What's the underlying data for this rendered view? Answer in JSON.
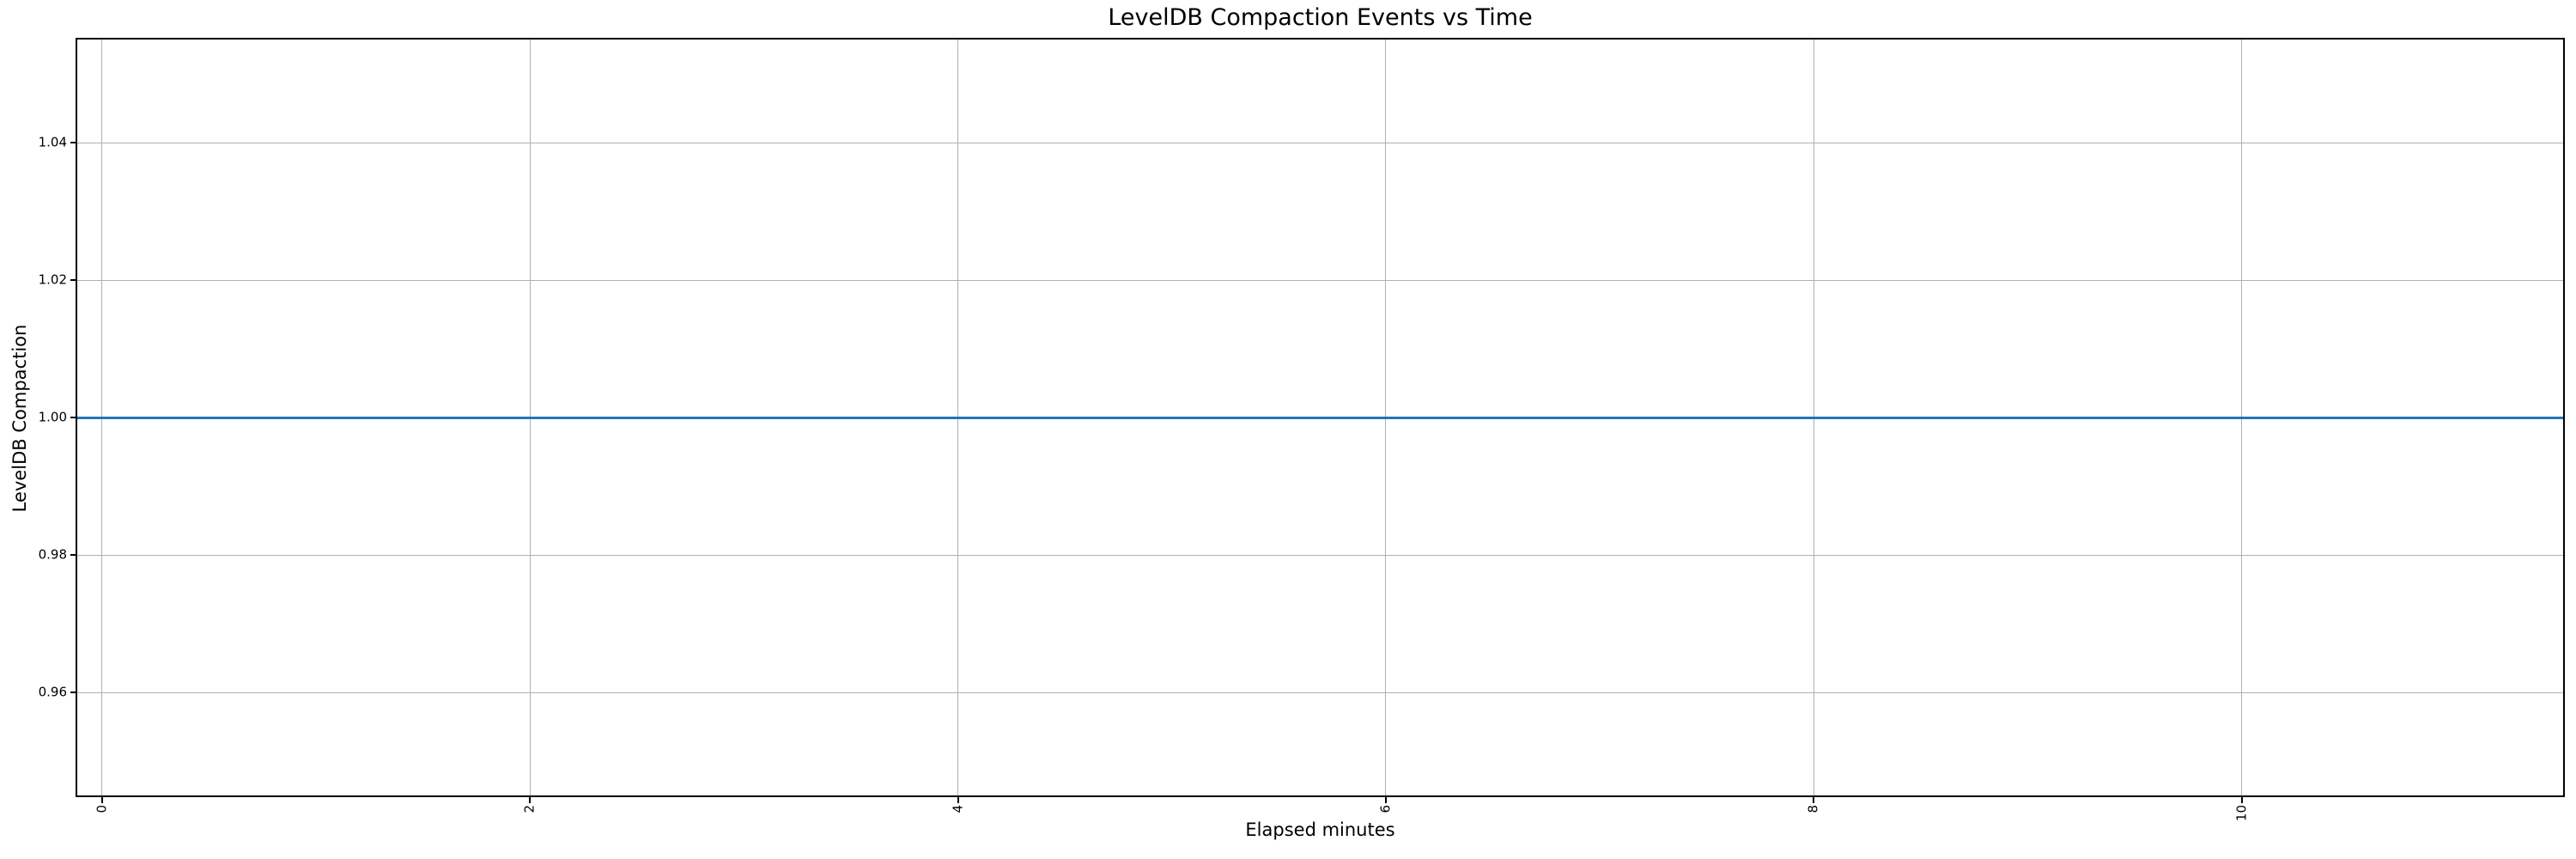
{
  "chart_data": {
    "type": "line",
    "title": "LevelDB Compaction Events vs Time",
    "xlabel": "Elapsed minutes",
    "ylabel": "LevelDB Compaction",
    "grid": true,
    "grid_color": "#b0b0b0",
    "background_color": "#ffffff",
    "spine_color": "#000000",
    "xlim": [
      -0.116,
      11.503
    ],
    "ylim": [
      0.945,
      1.055
    ],
    "x_ticks": [
      {
        "value": 0,
        "label": "0"
      },
      {
        "value": 2,
        "label": "2"
      },
      {
        "value": 4,
        "label": "4"
      },
      {
        "value": 6,
        "label": "6"
      },
      {
        "value": 8,
        "label": "8"
      },
      {
        "value": 10,
        "label": "10"
      }
    ],
    "x_tick_rotation": 90,
    "y_ticks": [
      {
        "value": 1.04,
        "label": "1.04"
      },
      {
        "value": 1.02,
        "label": "1.02"
      },
      {
        "value": 1.0,
        "label": "1.00"
      },
      {
        "value": 0.98,
        "label": "0.98"
      },
      {
        "value": 0.96,
        "label": "0.96"
      }
    ],
    "series": [
      {
        "name": "LevelDB Compaction",
        "color": "#1f77b4",
        "shape": "horizontal-line",
        "y": 1.0,
        "x_extent": "full-axis-width"
      }
    ]
  }
}
